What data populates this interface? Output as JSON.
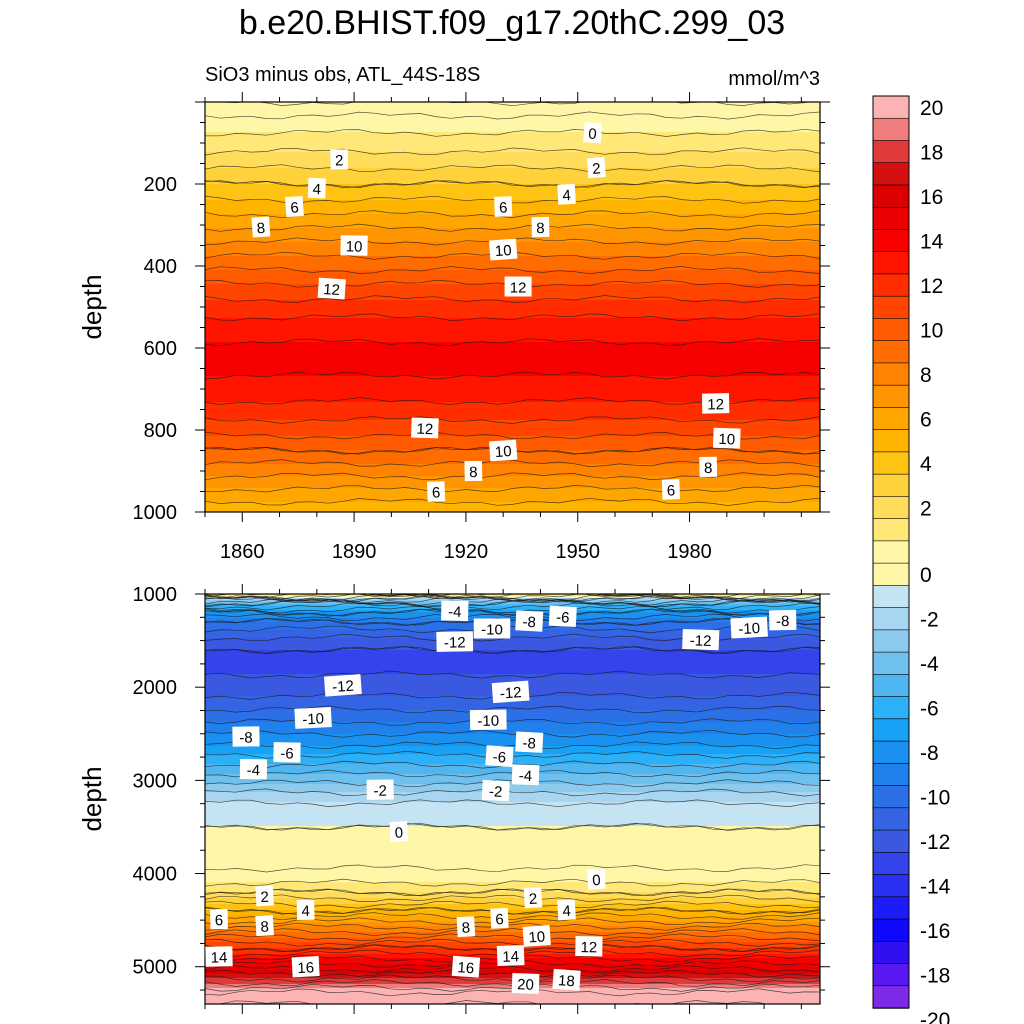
{
  "chart_data": [
    {
      "type": "heatmap",
      "panel": "top",
      "title": "b.e20.BHIST.f09_g17.20thC.299_03",
      "subtitle": "SiO3 minus obs, ATL_44S-18S",
      "units": "mmol/m^3",
      "xlabel": "",
      "ylabel": "depth",
      "xlim": [
        1850,
        2015
      ],
      "ylim": [
        1000,
        0
      ],
      "xticks": [
        1860,
        1890,
        1920,
        1950,
        1980
      ],
      "yticks": [
        200,
        400,
        600,
        800,
        1000
      ],
      "contour_profile_depth": [
        0,
        50,
        100,
        150,
        200,
        250,
        300,
        350,
        400,
        450,
        500,
        550,
        600,
        650,
        700,
        750,
        800,
        850,
        900,
        950,
        1000
      ],
      "contour_profile_value": [
        -1,
        0.5,
        1.5,
        2.7,
        4,
        5.3,
        6.8,
        8.3,
        9.7,
        11.2,
        12.5,
        13.5,
        14.2,
        14.2,
        13.6,
        12.6,
        11.4,
        10,
        8.4,
        6.8,
        5.2
      ],
      "contour_labels": [
        {
          "text": "0",
          "year": 1954,
          "depth": 75
        },
        {
          "text": "2",
          "year": 1886,
          "depth": 140
        },
        {
          "text": "2",
          "year": 1955,
          "depth": 160
        },
        {
          "text": "4",
          "year": 1880,
          "depth": 210
        },
        {
          "text": "4",
          "year": 1947,
          "depth": 225
        },
        {
          "text": "6",
          "year": 1874,
          "depth": 255
        },
        {
          "text": "6",
          "year": 1930,
          "depth": 255
        },
        {
          "text": "8",
          "year": 1865,
          "depth": 305
        },
        {
          "text": "8",
          "year": 1940,
          "depth": 305
        },
        {
          "text": "10",
          "year": 1890,
          "depth": 350
        },
        {
          "text": "10",
          "year": 1930,
          "depth": 360
        },
        {
          "text": "12",
          "year": 1884,
          "depth": 455
        },
        {
          "text": "12",
          "year": 1934,
          "depth": 450
        },
        {
          "text": "12",
          "year": 1909,
          "depth": 795
        },
        {
          "text": "12",
          "year": 1987,
          "depth": 735
        },
        {
          "text": "10",
          "year": 1930,
          "depth": 850
        },
        {
          "text": "10",
          "year": 1990,
          "depth": 820
        },
        {
          "text": "8",
          "year": 1922,
          "depth": 900
        },
        {
          "text": "8",
          "year": 1985,
          "depth": 890
        },
        {
          "text": "6",
          "year": 1912,
          "depth": 950
        },
        {
          "text": "6",
          "year": 1975,
          "depth": 945
        }
      ]
    },
    {
      "type": "heatmap",
      "panel": "bottom",
      "xlabel": "",
      "ylabel": "depth",
      "xlim": [
        1850,
        2015
      ],
      "ylim": [
        5400,
        1000
      ],
      "xticks": [
        1860,
        1890,
        1920,
        1950,
        1980
      ],
      "yticks": [
        1000,
        2000,
        3000,
        4000,
        5000
      ],
      "contour_profile_depth": [
        1000,
        1050,
        1100,
        1200,
        1300,
        1400,
        1500,
        1600,
        1800,
        2000,
        2200,
        2400,
        2600,
        2800,
        3000,
        3150,
        3300,
        3500,
        3700,
        3900,
        4050,
        4200,
        4400,
        4600,
        4800,
        5000,
        5100,
        5200,
        5300,
        5400
      ],
      "contour_profile_value": [
        2,
        -2,
        -5,
        -8,
        -10,
        -11.3,
        -12.3,
        -13,
        -13.2,
        -12.6,
        -11.3,
        -9.8,
        -8.2,
        -6.3,
        -4.3,
        -2.8,
        -1.5,
        -1,
        -0.6,
        -0.2,
        0.5,
        2,
        5,
        8.5,
        12,
        15.5,
        17.5,
        19.5,
        21.5,
        22
      ],
      "contour_labels": [
        {
          "text": "-4",
          "year": 1917,
          "depth": 1180
        },
        {
          "text": "-6",
          "year": 1946,
          "depth": 1240
        },
        {
          "text": "-8",
          "year": 1937,
          "depth": 1290
        },
        {
          "text": "-10",
          "year": 1927,
          "depth": 1370
        },
        {
          "text": "-12",
          "year": 1917,
          "depth": 1510
        },
        {
          "text": "-12",
          "year": 1983,
          "depth": 1490
        },
        {
          "text": "-10",
          "year": 1996,
          "depth": 1360
        },
        {
          "text": "-8",
          "year": 2005,
          "depth": 1280
        },
        {
          "text": "-12",
          "year": 1887,
          "depth": 1980
        },
        {
          "text": "-12",
          "year": 1932,
          "depth": 2050
        },
        {
          "text": "-10",
          "year": 1879,
          "depth": 2330
        },
        {
          "text": "-10",
          "year": 1926,
          "depth": 2350
        },
        {
          "text": "-8",
          "year": 1861,
          "depth": 2530
        },
        {
          "text": "-8",
          "year": 1937,
          "depth": 2590
        },
        {
          "text": "-6",
          "year": 1872,
          "depth": 2700
        },
        {
          "text": "-6",
          "year": 1929,
          "depth": 2740
        },
        {
          "text": "-4",
          "year": 1863,
          "depth": 2880
        },
        {
          "text": "-4",
          "year": 1936,
          "depth": 2940
        },
        {
          "text": "-2",
          "year": 1897,
          "depth": 3100
        },
        {
          "text": "-2",
          "year": 1928,
          "depth": 3110
        },
        {
          "text": "0",
          "year": 1902,
          "depth": 3550
        },
        {
          "text": "0",
          "year": 1955,
          "depth": 4060
        },
        {
          "text": "2",
          "year": 1866,
          "depth": 4240
        },
        {
          "text": "2",
          "year": 1938,
          "depth": 4260
        },
        {
          "text": "4",
          "year": 1877,
          "depth": 4390
        },
        {
          "text": "4",
          "year": 1947,
          "depth": 4390
        },
        {
          "text": "6",
          "year": 1850,
          "depth": 4490
        },
        {
          "text": "6",
          "year": 1929,
          "depth": 4480
        },
        {
          "text": "8",
          "year": 1866,
          "depth": 4560
        },
        {
          "text": "8",
          "year": 1920,
          "depth": 4570
        },
        {
          "text": "10",
          "year": 1939,
          "depth": 4670
        },
        {
          "text": "12",
          "year": 1953,
          "depth": 4780
        },
        {
          "text": "14",
          "year": 1852,
          "depth": 4890
        },
        {
          "text": "14",
          "year": 1932,
          "depth": 4880
        },
        {
          "text": "16",
          "year": 1877,
          "depth": 5000
        },
        {
          "text": "16",
          "year": 1920,
          "depth": 5000
        },
        {
          "text": "18",
          "year": 1947,
          "depth": 5140
        },
        {
          "text": "20",
          "year": 1936,
          "depth": 5180
        }
      ]
    }
  ],
  "colorbar": {
    "labels": [
      "20",
      "18",
      "16",
      "14",
      "12",
      "10",
      "8",
      "6",
      "4",
      "2",
      "0",
      "-2",
      "-4",
      "-6",
      "-8",
      "-10",
      "-12",
      "-14",
      "-16",
      "-18",
      "-20"
    ],
    "levels_top_to_bottom": [
      20,
      19,
      18,
      17,
      16,
      15,
      14,
      13,
      12,
      11,
      10,
      9,
      8,
      7,
      6,
      5,
      4,
      3,
      2,
      1,
      0,
      -1,
      -2,
      -3,
      -4,
      -5,
      -6,
      -7,
      -8,
      -9,
      -10,
      -11,
      -12,
      -13,
      -14,
      -15,
      -16,
      -17,
      -18,
      -19,
      -20
    ],
    "colors_top_to_bottom": [
      "#fcb3b3",
      "#f07d7d",
      "#e03a3a",
      "#d41010",
      "#dc0000",
      "#ea0000",
      "#f80000",
      "#ff1400",
      "#ff2d00",
      "#ff4500",
      "#ff5a00",
      "#ff6d00",
      "#ff8200",
      "#ff9500",
      "#ffa700",
      "#ffb400",
      "#ffc314",
      "#ffd23c",
      "#ffdd5a",
      "#ffe878",
      "#fff7a8",
      "#fff7a8",
      "#c4e4f4",
      "#a8d6f0",
      "#8ccaee",
      "#6ec0ee",
      "#50b6f2",
      "#2cb0f8",
      "#18a2f6",
      "#1a90f0",
      "#2080ec",
      "#2c70e8",
      "#3464e4",
      "#3a58e0",
      "#3444ec",
      "#2a30f2",
      "#1c1cf8",
      "#1008fc",
      "#3010f0",
      "#5a18f0",
      "#7d2ae8"
    ]
  },
  "colors": {
    "contour_line": "#1a1a1a",
    "label_bg": "#ffffff",
    "text": "#000000"
  }
}
